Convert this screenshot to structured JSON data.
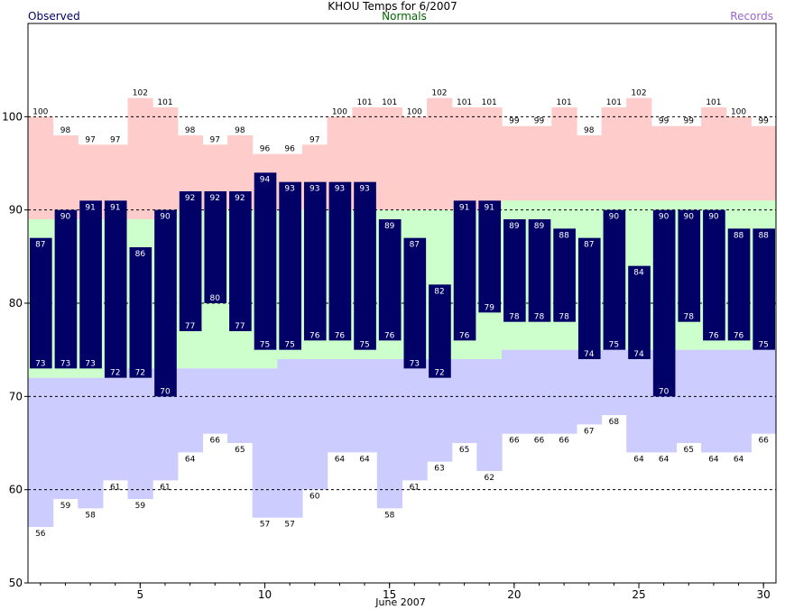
{
  "title": "KHOU Temps for 6/2007",
  "legend": {
    "observed": "Observed",
    "normals": "Normals",
    "records": "Records"
  },
  "colors": {
    "observed": "#000066",
    "observed_text": "#000066",
    "normals_text": "#006600",
    "records_text": "#9966cc",
    "record_high_fill": "#ffcccc",
    "normal_fill": "#ccffcc",
    "record_low_fill": "#ccccff",
    "grid": "#000000"
  },
  "chart_data": {
    "type": "bar",
    "title": "KHOU Temps for 6/2007",
    "xlabel": "June 2007",
    "ylabel": "",
    "days": [
      1,
      2,
      3,
      4,
      5,
      6,
      7,
      8,
      9,
      10,
      11,
      12,
      13,
      14,
      15,
      16,
      17,
      18,
      19,
      20,
      21,
      22,
      23,
      24,
      25,
      26,
      27,
      28,
      29,
      30
    ],
    "xticks": [
      5,
      10,
      15,
      20,
      25,
      30
    ],
    "ylim": [
      50,
      110
    ],
    "yticks": [
      50,
      60,
      70,
      80,
      90,
      100
    ],
    "gridlines": [
      60,
      70,
      80,
      90,
      100
    ],
    "series": [
      {
        "name": "Observed",
        "kind": "high",
        "values": [
          87,
          90,
          91,
          91,
          86,
          90,
          92,
          92,
          92,
          94,
          93,
          93,
          93,
          93,
          89,
          87,
          82,
          91,
          91,
          89,
          89,
          88,
          87,
          90,
          84,
          90,
          90,
          90,
          88,
          88
        ]
      },
      {
        "name": "Observed",
        "kind": "low",
        "values": [
          73,
          73,
          73,
          72,
          72,
          70,
          77,
          80,
          77,
          75,
          75,
          76,
          76,
          75,
          76,
          73,
          72,
          76,
          79,
          78,
          78,
          78,
          74,
          75,
          74,
          70,
          78,
          76,
          76,
          75
        ]
      },
      {
        "name": "Records",
        "kind": "record_high",
        "values": [
          100,
          98,
          97,
          97,
          102,
          101,
          98,
          97,
          98,
          96,
          96,
          97,
          100,
          101,
          101,
          100,
          102,
          101,
          101,
          99,
          99,
          101,
          98,
          101,
          102,
          99,
          99,
          101,
          100,
          99
        ]
      },
      {
        "name": "Records",
        "kind": "record_low",
        "values": [
          56,
          59,
          58,
          61,
          59,
          61,
          64,
          66,
          65,
          57,
          57,
          60,
          64,
          64,
          58,
          61,
          63,
          65,
          62,
          66,
          66,
          66,
          67,
          68,
          64,
          64,
          65,
          64,
          64,
          66
        ]
      },
      {
        "name": "Normals",
        "kind": "normal_high",
        "values": [
          89,
          89,
          89,
          89,
          89,
          89,
          90,
          90,
          90,
          90,
          90,
          90,
          90,
          90,
          90,
          90,
          90,
          90,
          90,
          91,
          91,
          91,
          91,
          91,
          91,
          91,
          91,
          91,
          91,
          91
        ]
      },
      {
        "name": "Normals",
        "kind": "normal_low",
        "values": [
          72,
          72,
          72,
          72,
          73,
          73,
          73,
          73,
          73,
          73,
          74,
          74,
          74,
          74,
          74,
          74,
          74,
          74,
          74,
          75,
          75,
          75,
          75,
          75,
          75,
          75,
          75,
          75,
          75,
          75
        ]
      }
    ]
  }
}
